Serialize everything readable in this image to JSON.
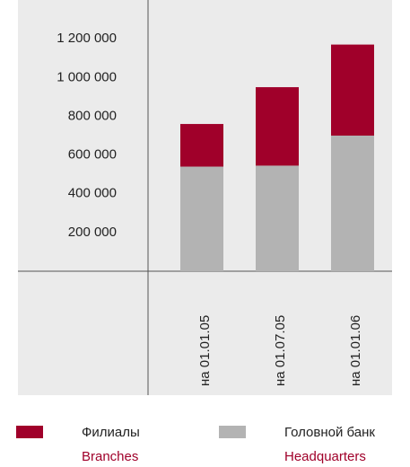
{
  "chart_data": {
    "type": "stacked-bar",
    "categories": [
      "на 01.01.05",
      "на 01.07.05",
      "на 01.01.06"
    ],
    "series": [
      {
        "name": "Головной банк",
        "name_en": "Headquarters",
        "color": "#b3b3b3",
        "values": [
          540000,
          545000,
          700000
        ]
      },
      {
        "name": "Филиалы",
        "name_en": "Branches",
        "color": "#a0002a",
        "values": [
          220000,
          405000,
          470000
        ]
      }
    ],
    "ylim": [
      0,
      1400000
    ],
    "yticks": [
      {
        "value": 200000,
        "label": "200 000"
      },
      {
        "value": 400000,
        "label": "400 000"
      },
      {
        "value": 600000,
        "label": "600 000"
      },
      {
        "value": 800000,
        "label": "800 000"
      },
      {
        "value": 1000000,
        "label": "1 000 000"
      },
      {
        "value": 1200000,
        "label": "1 200 000"
      }
    ],
    "grid": false
  }
}
